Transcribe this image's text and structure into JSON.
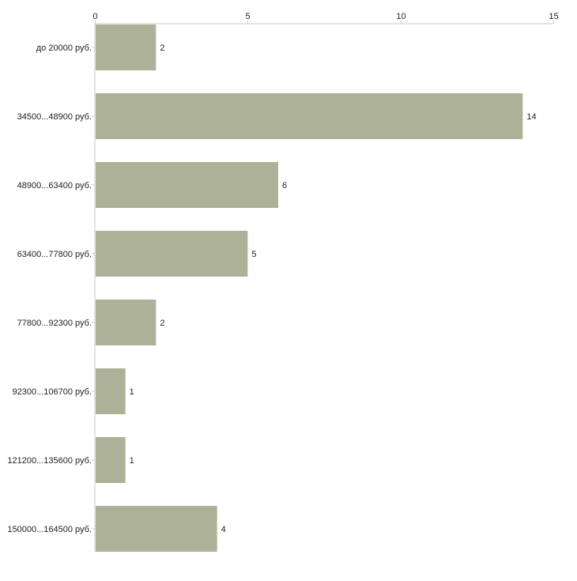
{
  "chart_data": {
    "type": "bar",
    "orientation": "horizontal",
    "categories": [
      "до 20000 руб.",
      "34500...48900 руб.",
      "48900...63400 руб.",
      "63400...77800 руб.",
      "77800...92300 руб.",
      "92300...106700 руб.",
      "121200...135600 руб.",
      "150000...164500 руб."
    ],
    "values": [
      2,
      14,
      6,
      5,
      2,
      1,
      1,
      4
    ],
    "data_labels": [
      "2",
      "14",
      "6",
      "5",
      "2",
      "1",
      "1",
      "4"
    ],
    "xlim": [
      0,
      15
    ],
    "x_ticks": [
      0,
      5,
      10,
      15
    ],
    "x_tick_labels": [
      "0",
      "5",
      "10",
      "15"
    ],
    "x_axis_position": "top",
    "grid": false,
    "legend": "none",
    "colors": {
      "bar": "#adb197",
      "axis": "#c8c8c8",
      "text": "#222222"
    }
  }
}
